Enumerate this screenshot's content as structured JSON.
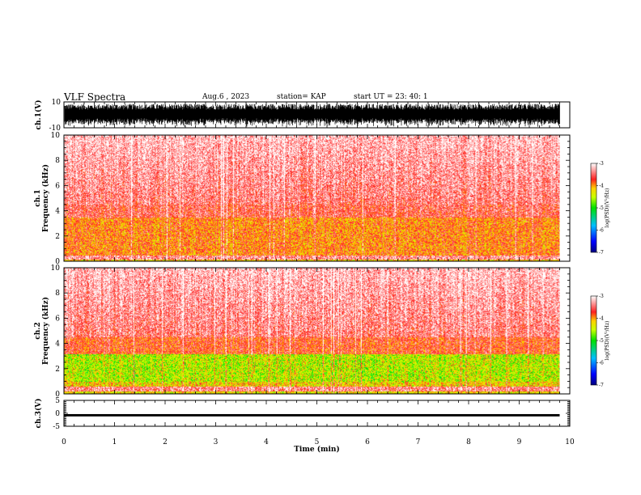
{
  "header": {
    "title": "VLF Spectra",
    "date": "Aug.6 , 2023",
    "station": "station= KAP",
    "start": "start UT = 23: 40: 1"
  },
  "chart_data": [
    {
      "panel": "ch1-waveform",
      "type": "line",
      "ylabel": "ch.1(V)",
      "ylim": [
        -10,
        10
      ],
      "yticks": [
        "10",
        "-10"
      ],
      "x_range_min": [
        0,
        9.8
      ],
      "description_values": "dense noise oscillating between about -8 and 8 V"
    },
    {
      "panel": "ch1-spectrogram",
      "type": "heatmap",
      "ylabel": "ch.1\nFrequency (kHz)",
      "ylabel_line1": "ch.1",
      "ylabel_line2": "Frequency (kHz)",
      "ylim": [
        0,
        10
      ],
      "yticks": [
        "0",
        "2",
        "4",
        "6",
        "8",
        "10"
      ],
      "colorbar": {
        "label": "log(PSD)(V²/Hz)",
        "range": [
          -7,
          -3
        ],
        "ticks": [
          "-3",
          "-4",
          "-5",
          "-6",
          "-7"
        ]
      }
    },
    {
      "panel": "ch2-spectrogram",
      "type": "heatmap",
      "ylabel_line1": "ch.2",
      "ylabel_line2": "Frequency (kHz)",
      "ylim": [
        0,
        10
      ],
      "yticks": [
        "0",
        "2",
        "4",
        "6",
        "8",
        "10"
      ],
      "colorbar": {
        "label": "log(PSD)(V²/Hz)",
        "range": [
          -7,
          -3
        ],
        "ticks": [
          "-3",
          "-4",
          "-5",
          "-6",
          "-7"
        ]
      }
    },
    {
      "panel": "ch3-waveform",
      "type": "line",
      "ylabel": "ch.3(V)",
      "ylim": [
        -5,
        5
      ],
      "yticks": [
        "5",
        "0",
        "-5"
      ],
      "band": [
        -1.2,
        -0.3
      ]
    }
  ],
  "xaxis": {
    "label": "Time (min)",
    "range": [
      0,
      10
    ],
    "ticks": [
      "0",
      "1",
      "2",
      "3",
      "4",
      "5",
      "6",
      "7",
      "8",
      "9",
      "10"
    ],
    "data_end": 9.8
  }
}
